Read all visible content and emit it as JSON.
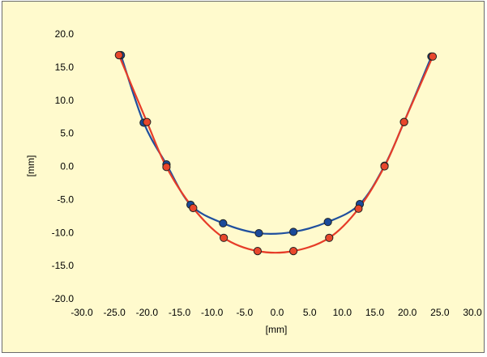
{
  "chart_data": {
    "type": "scatter",
    "title": "",
    "xlabel": "[mm]",
    "ylabel": "[mm]",
    "xlim": [
      -30,
      30
    ],
    "ylim": [
      -20,
      20
    ],
    "xticks": [
      "-30.0",
      "-25.0",
      "-20.0",
      "-15.0",
      "-10.0",
      "-5.0",
      "0.0",
      "5.0",
      "10.0",
      "15.0",
      "20.0",
      "25.0",
      "30.0"
    ],
    "yticks": [
      "20.0",
      "15.0",
      "10.0",
      "5.0",
      "0.0",
      "-5.0",
      "-10.0",
      "-15.0",
      "-20.0"
    ],
    "grid": false,
    "legend": "none",
    "background": "#fffacd",
    "series": [
      {
        "color": "#1f4f9e",
        "marker_fill": "#1a4a9a",
        "points": [
          [
            -24.0,
            16.8
          ],
          [
            -20.5,
            6.6
          ],
          [
            -17.0,
            0.3
          ],
          [
            -13.3,
            -5.8
          ],
          [
            -8.3,
            -8.6
          ],
          [
            -2.8,
            -10.1
          ],
          [
            2.5,
            -9.9
          ],
          [
            7.8,
            -8.4
          ],
          [
            12.7,
            -5.7
          ],
          [
            16.5,
            0.1
          ],
          [
            19.5,
            6.7
          ],
          [
            23.7,
            16.6
          ]
        ]
      },
      {
        "color": "#e63c28",
        "marker_fill": "#e8472c",
        "points": [
          [
            -24.3,
            16.8
          ],
          [
            -20.0,
            6.7
          ],
          [
            -17.0,
            -0.1
          ],
          [
            -12.9,
            -6.3
          ],
          [
            -8.2,
            -10.8
          ],
          [
            -3.0,
            -12.8
          ],
          [
            2.5,
            -12.8
          ],
          [
            8.0,
            -10.8
          ],
          [
            12.5,
            -6.4
          ],
          [
            16.5,
            0.0
          ],
          [
            19.5,
            6.7
          ],
          [
            23.9,
            16.6
          ]
        ]
      }
    ]
  }
}
